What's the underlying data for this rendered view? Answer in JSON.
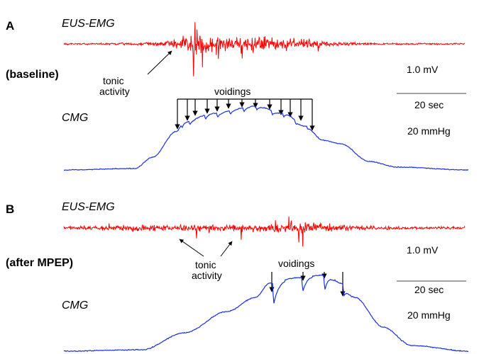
{
  "panel_a": {
    "letter": "A",
    "condition": "(baseline)",
    "emg_label": "EUS-EMG",
    "cmg_label": "CMG",
    "tonic_label_line1": "tonic",
    "tonic_label_line2": "activity",
    "voidings_label": "voidings",
    "voiding_count": 10,
    "scale_mv": "1.0 mV",
    "scale_time": "20 sec",
    "scale_pressure": "20 mmHg"
  },
  "panel_b": {
    "letter": "B",
    "condition": "(after MPEP)",
    "emg_label": "EUS-EMG",
    "cmg_label": "CMG",
    "tonic_label_line1": "tonic",
    "tonic_label_line2": "activity",
    "voidings_label": "voidings",
    "voiding_count": 4,
    "scale_mv": "1.0 mV",
    "scale_time": "20 sec",
    "scale_pressure": "20 mmHg"
  },
  "colors": {
    "emg_trace": "#ff0000",
    "cmg_trace": "#1a2fe0",
    "annotation": "#000000",
    "background": "#ffffff"
  }
}
